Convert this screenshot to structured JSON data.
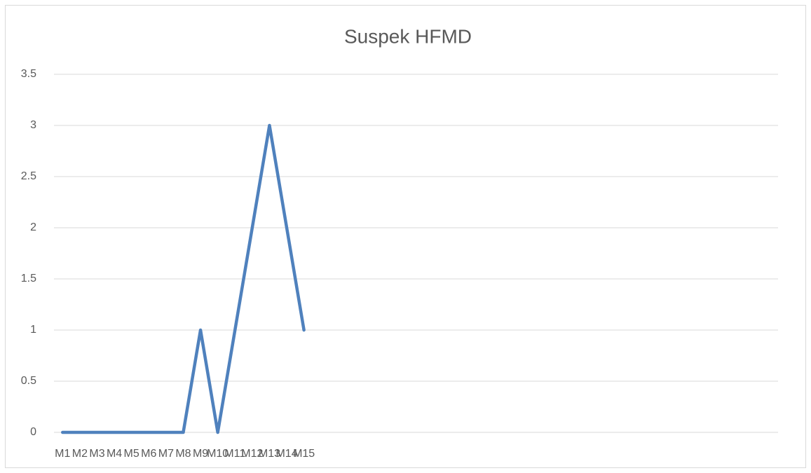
{
  "chart_data": {
    "type": "line",
    "title": "Suspek HFMD",
    "categories": [
      "M1",
      "M2",
      "M3",
      "M4",
      "M5",
      "M6",
      "M7",
      "M8",
      "M9",
      "M10",
      "M11",
      "M12",
      "M13",
      "M14",
      "M15",
      null,
      null,
      null,
      null,
      null,
      null,
      null,
      null,
      null,
      null,
      null,
      null,
      null,
      null,
      null,
      null,
      null,
      null,
      null,
      null,
      null,
      null,
      null,
      null,
      null,
      null,
      null
    ],
    "series": [
      {
        "name": "Suspek HFMD",
        "color": "#4f81bd",
        "values": [
          0,
          0,
          0,
          0,
          0,
          0,
          0,
          0,
          1,
          0,
          1,
          2,
          3,
          2,
          1,
          null,
          null,
          null,
          null,
          null,
          null,
          null,
          null,
          null,
          null,
          null,
          null,
          null,
          null,
          null,
          null,
          null,
          null,
          null,
          null,
          null,
          null,
          null,
          null,
          null,
          null,
          null
        ]
      }
    ],
    "ylim": [
      0,
      3.5
    ],
    "yticks": [
      0,
      0.5,
      1,
      1.5,
      2,
      2.5,
      3,
      3.5
    ],
    "grid": true
  }
}
